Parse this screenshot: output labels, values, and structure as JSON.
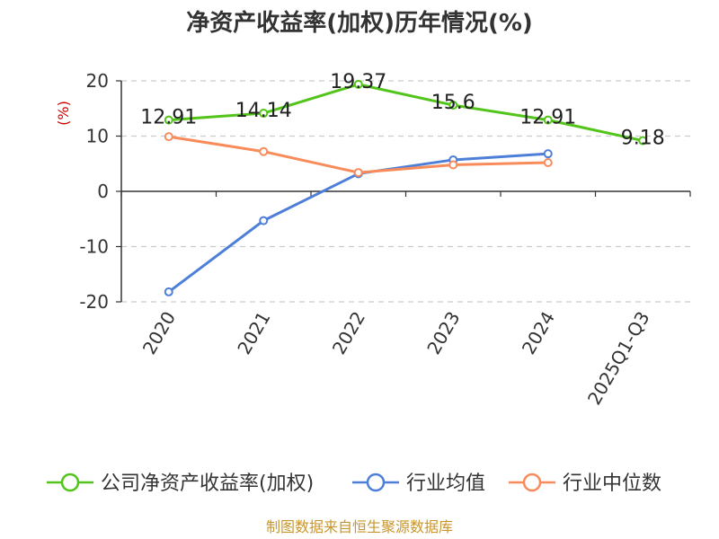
{
  "chart_data": {
    "type": "line",
    "title": "净资产收益率(加权)历年情况(%)",
    "ylabel": "(%)",
    "xlabel": "",
    "ylim": [
      -20,
      20
    ],
    "yticks": [
      20,
      10,
      0,
      -10,
      -20
    ],
    "categories": [
      "2020",
      "2021",
      "2022",
      "2023",
      "2024",
      "2025Q1-Q3"
    ],
    "series": [
      {
        "name": "公司净资产收益率(加权)",
        "color": "#52c41a",
        "values": [
          12.91,
          14.14,
          19.37,
          15.6,
          12.91,
          9.18
        ],
        "labels": [
          "12.91",
          "14.14",
          "19.37",
          "15.6",
          "12.91",
          "9.18"
        ]
      },
      {
        "name": "行业均值",
        "color": "#4e7fd8",
        "values": [
          -18.2,
          -5.3,
          3.2,
          5.7,
          6.8,
          null
        ]
      },
      {
        "name": "行业中位数",
        "color": "#f98b5a",
        "values": [
          9.9,
          7.2,
          3.4,
          4.8,
          5.2,
          null
        ]
      }
    ],
    "grid": true,
    "legend": "bottom"
  },
  "footer": "制图数据来自恒生聚源数据库"
}
